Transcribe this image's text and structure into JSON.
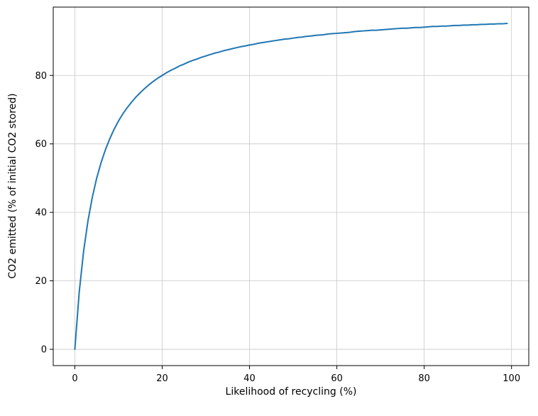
{
  "figure": {
    "background": "#ffffff"
  },
  "chart_data": {
    "type": "line",
    "title": "",
    "xlabel": "Likelihood of recycling (%)",
    "ylabel": "CO2 emitted (% of initial CO2 stored)",
    "xlim": [
      -4.95,
      103.95
    ],
    "ylim": [
      -4.76,
      99.96
    ],
    "x_ticks": [
      0,
      20,
      40,
      60,
      80,
      100
    ],
    "y_ticks": [
      0,
      20,
      40,
      60,
      80
    ],
    "grid": true,
    "grid_color": "#c8c8c8",
    "line_color": "#1f77b4",
    "line_width": 2,
    "legend": "none",
    "series": [
      {
        "name": "co2-emitted-vs-recycling-likelihood",
        "x": [
          0,
          1,
          2,
          3,
          4,
          5,
          6,
          7,
          8,
          9,
          10,
          11,
          12,
          13,
          14,
          15,
          16,
          17,
          18,
          19,
          20,
          21,
          22,
          23,
          24,
          25,
          26,
          27,
          28,
          29,
          30,
          31,
          32,
          33,
          34,
          35,
          36,
          37,
          38,
          39,
          40,
          41,
          42,
          43,
          44,
          45,
          46,
          47,
          48,
          49,
          50,
          51,
          52,
          53,
          54,
          55,
          56,
          57,
          58,
          59,
          60,
          61,
          62,
          63,
          64,
          65,
          66,
          67,
          68,
          69,
          70,
          71,
          72,
          73,
          74,
          75,
          76,
          77,
          78,
          79,
          80,
          81,
          82,
          83,
          84,
          85,
          86,
          87,
          88,
          89,
          90,
          91,
          92,
          93,
          94,
          95,
          96,
          97,
          98,
          99
        ],
        "y": [
          0,
          16.7,
          28.6,
          37.5,
          44.4,
          50,
          54.5,
          58.3,
          61.5,
          64.3,
          66.7,
          68.8,
          70.6,
          72.2,
          73.7,
          75,
          76.2,
          77.3,
          78.3,
          79.2,
          80,
          80.8,
          81.5,
          82.1,
          82.8,
          83.3,
          83.9,
          84.4,
          84.8,
          85.3,
          85.7,
          86.1,
          86.5,
          86.8,
          87.2,
          87.5,
          87.8,
          88.1,
          88.4,
          88.6,
          88.9,
          89.1,
          89.4,
          89.6,
          89.8,
          90,
          90.2,
          90.4,
          90.6,
          90.7,
          90.9,
          91.1,
          91.2,
          91.4,
          91.5,
          91.7,
          91.8,
          91.9,
          92.1,
          92.2,
          92.3,
          92.4,
          92.5,
          92.6,
          92.8,
          92.9,
          93,
          93.1,
          93.2,
          93.2,
          93.3,
          93.4,
          93.5,
          93.6,
          93.7,
          93.8,
          93.8,
          93.9,
          94,
          94,
          94.1,
          94.2,
          94.3,
          94.3,
          94.4,
          94.4,
          94.5,
          94.6,
          94.6,
          94.7,
          94.7,
          94.8,
          94.8,
          94.9,
          94.9,
          95,
          95,
          95.1,
          95.1,
          95.2
        ]
      }
    ]
  }
}
